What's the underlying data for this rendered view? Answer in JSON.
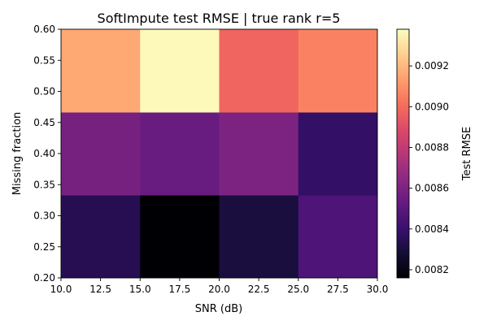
{
  "chart_data": {
    "type": "heatmap",
    "title": "SoftImpute test RMSE | true rank r=5",
    "xlabel": "SNR (dB)",
    "ylabel": "Missing fraction",
    "colorbar_label": "Test RMSE",
    "colormap": "magma",
    "x_edges": [
      10,
      15,
      20,
      25,
      30
    ],
    "y_edges": [
      0.2,
      0.3333,
      0.4667,
      0.6
    ],
    "xlim": [
      10,
      30
    ],
    "ylim": [
      0.2,
      0.6
    ],
    "x_ticks": [
      "10.0",
      "12.5",
      "15.0",
      "17.5",
      "20.0",
      "22.5",
      "25.0",
      "27.5",
      "30.0"
    ],
    "y_ticks": [
      "0.20",
      "0.25",
      "0.30",
      "0.35",
      "0.40",
      "0.45",
      "0.50",
      "0.55",
      "0.60"
    ],
    "colorbar_ticks": [
      "0.0082",
      "0.0084",
      "0.0086",
      "0.0088",
      "0.0090",
      "0.0092"
    ],
    "vmin": 0.00816,
    "vmax": 0.00938,
    "values": [
      [
        0.00834,
        0.00816,
        0.0083,
        0.00846
      ],
      [
        0.00858,
        0.00854,
        0.0086,
        0.00838
      ],
      [
        0.00916,
        0.00937,
        0.00898,
        0.00906
      ]
    ]
  }
}
